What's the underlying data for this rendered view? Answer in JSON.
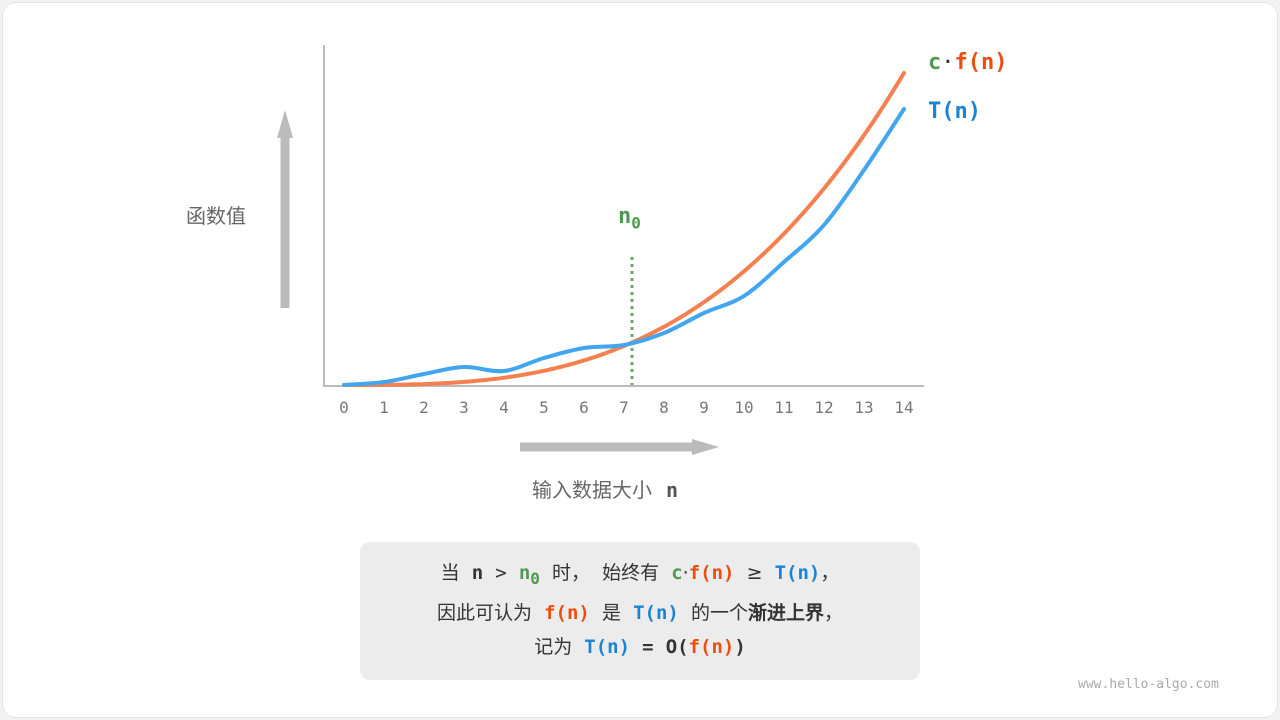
{
  "y_axis_label": "函数值",
  "x_axis_label": "输入数据大小",
  "x_axis_var": "n",
  "x_ticks": [
    "0",
    "1",
    "2",
    "3",
    "4",
    "5",
    "6",
    "7",
    "8",
    "9",
    "10",
    "11",
    "12",
    "13",
    "14"
  ],
  "legend": {
    "c": "c",
    "dot": "·",
    "f": "f(n)",
    "t": "T(n)"
  },
  "n0_label": {
    "base": "n",
    "sub": "0"
  },
  "n0_value": 7.2,
  "colors": {
    "cf": "#f5804f",
    "t": "#42a5f0",
    "n0": "#4e9a4e"
  },
  "caption": {
    "l1_a": "当",
    "l1_n": "n",
    "l1_gt": ">",
    "l1_n0": "n",
    "l1_n0sub": "0",
    "l1_b": "时，",
    "l1_c": "始终有",
    "l1_cc": "c",
    "l1_dot": "·",
    "l1_f": "f(n)",
    "l1_ge": "≥",
    "l1_t": "T(n)",
    "l1_end": "，",
    "l2_a": "因此可认为",
    "l2_f": "f(n)",
    "l2_b": "是",
    "l2_t": "T(n)",
    "l2_c": "的一个",
    "l2_bold": "渐进上界",
    "l2_end": "，",
    "l3_a": "记为",
    "l3_t": "T(n)",
    "l3_eq": "=",
    "l3_o": "O(",
    "l3_f": "f(n)",
    "l3_close": ")"
  },
  "watermark": "www.hello-algo.com"
}
